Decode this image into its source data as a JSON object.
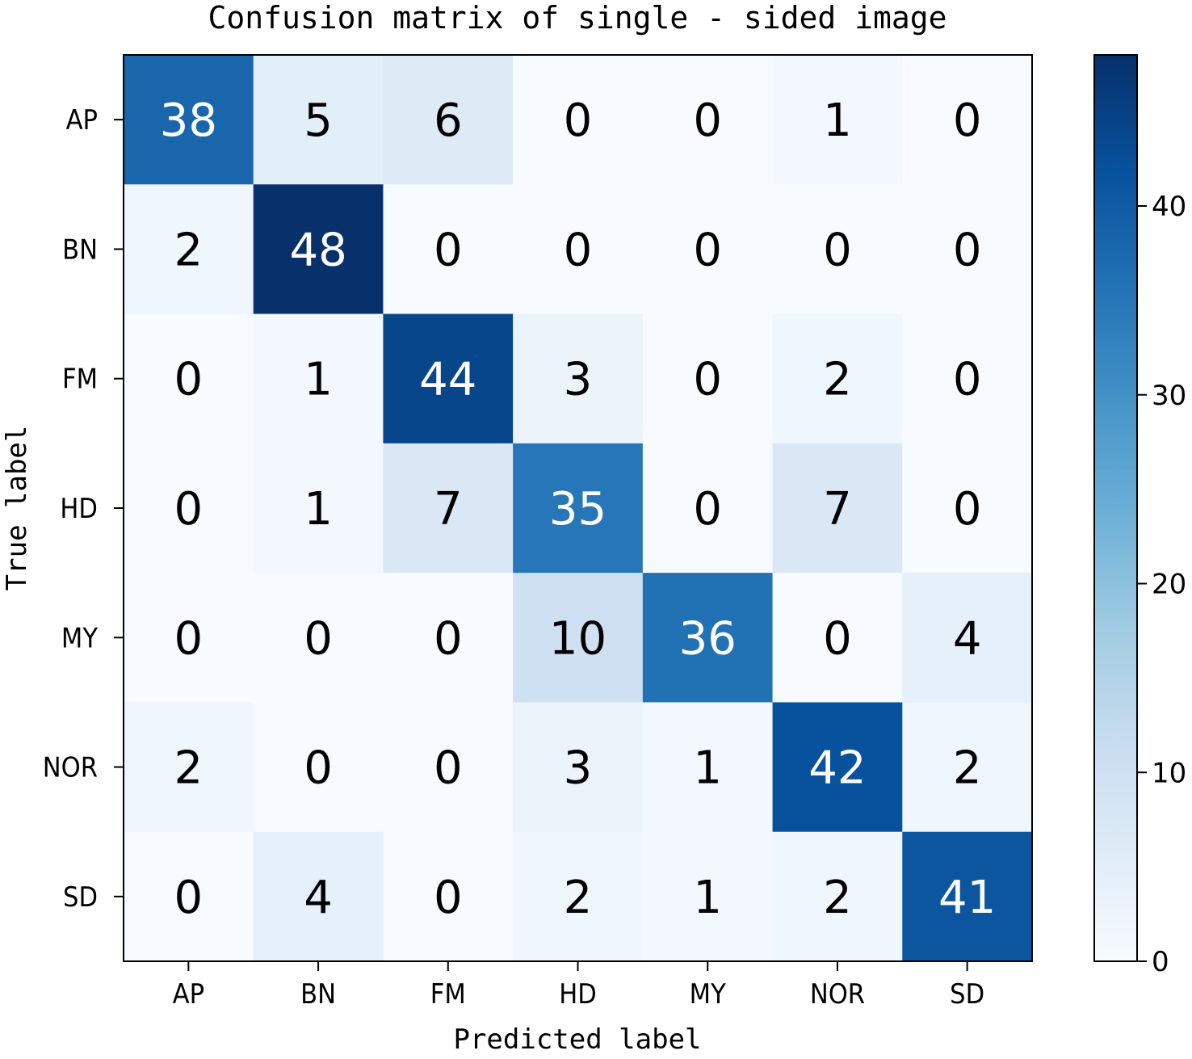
{
  "chart_data": {
    "type": "heatmap",
    "title": "Confusion matrix of single - sided image",
    "xlabel": "Predicted label",
    "ylabel": "True label",
    "x_categories": [
      "AP",
      "BN",
      "FM",
      "HD",
      "MY",
      "NOR",
      "SD"
    ],
    "y_categories": [
      "AP",
      "BN",
      "FM",
      "HD",
      "MY",
      "NOR",
      "SD"
    ],
    "values": [
      [
        38,
        5,
        6,
        0,
        0,
        1,
        0
      ],
      [
        2,
        48,
        0,
        0,
        0,
        0,
        0
      ],
      [
        0,
        1,
        44,
        3,
        0,
        2,
        0
      ],
      [
        0,
        1,
        7,
        35,
        0,
        7,
        0
      ],
      [
        0,
        0,
        0,
        10,
        36,
        0,
        4
      ],
      [
        2,
        0,
        0,
        3,
        1,
        42,
        2
      ],
      [
        0,
        4,
        0,
        2,
        1,
        2,
        41
      ]
    ],
    "colorscale": "Blues",
    "vmin": 0,
    "vmax": 48,
    "colorbar_ticks": [
      0,
      10,
      20,
      30,
      40
    ],
    "colorbar_tick_labels": [
      "0",
      "10",
      "20",
      "30",
      "40"
    ],
    "low_color": "#f7fbff",
    "high_color": "#08306b",
    "text_dark": "#000000",
    "text_light": "#ffffff"
  }
}
